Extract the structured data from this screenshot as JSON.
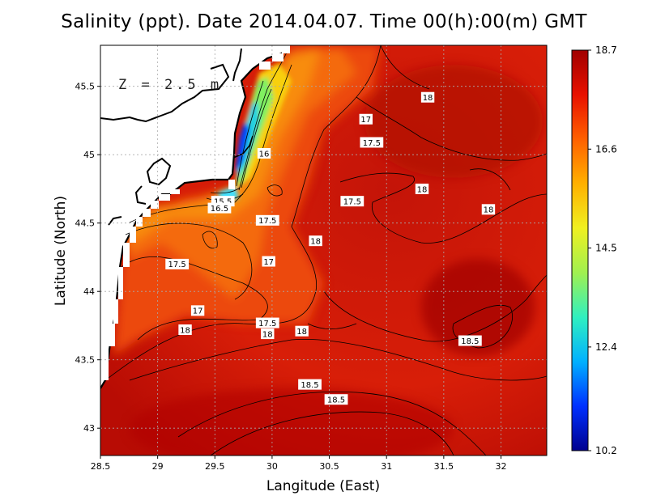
{
  "title": "Salinity (ppt). Date 2014.04.07. Time 00(h):00(m) GMT",
  "depth_label": "Z = 2.5 m",
  "chart_data": {
    "type": "heatmap",
    "variable": "Salinity (ppt)",
    "xlabel": "Langitude (East)",
    "ylabel": "Latitude (North)",
    "xlim": [
      28.5,
      32.4
    ],
    "ylim": [
      42.8,
      45.8
    ],
    "x_ticks": [
      28.5,
      29,
      29.5,
      30,
      30.5,
      31,
      31.5,
      32
    ],
    "x_tick_labels": [
      "28.5",
      "29",
      "29.5",
      "30",
      "30.5",
      "31",
      "31.5",
      "32"
    ],
    "y_ticks": [
      43,
      43.5,
      44,
      44.5,
      45,
      45.5
    ],
    "y_tick_labels": [
      "43",
      "43.5",
      "44",
      "44.5",
      "45",
      "45.5"
    ],
    "grid": true,
    "colorbar": {
      "min": 10.2,
      "max": 18.7,
      "tick_values": [
        18.7,
        16.6,
        14.5,
        12.4,
        10.2
      ],
      "tick_labels": [
        "18.7",
        "16.6",
        "14.5",
        "12.4",
        "10.2"
      ],
      "colors": [
        "#00008f",
        "#0030ff",
        "#00b0ff",
        "#30f0c0",
        "#a0f050",
        "#f0f020",
        "#ffb000",
        "#ff6000",
        "#e81000",
        "#a00000"
      ]
    },
    "contour_labels": [
      {
        "text": "17",
        "lon": 30.82,
        "lat": 45.26
      },
      {
        "text": "18",
        "lon": 31.36,
        "lat": 45.42
      },
      {
        "text": "17.5",
        "lon": 30.87,
        "lat": 45.09
      },
      {
        "text": "16",
        "lon": 29.93,
        "lat": 45.01
      },
      {
        "text": "15.5",
        "lon": 29.57,
        "lat": 44.66
      },
      {
        "text": "16.5",
        "lon": 29.54,
        "lat": 44.61
      },
      {
        "text": "17.5",
        "lon": 30.7,
        "lat": 44.66
      },
      {
        "text": "18",
        "lon": 31.31,
        "lat": 44.75
      },
      {
        "text": "18",
        "lon": 31.89,
        "lat": 44.6
      },
      {
        "text": "17.5",
        "lon": 29.96,
        "lat": 44.52
      },
      {
        "text": "18",
        "lon": 30.38,
        "lat": 44.37
      },
      {
        "text": "17.5",
        "lon": 29.17,
        "lat": 44.2
      },
      {
        "text": "17",
        "lon": 29.97,
        "lat": 44.22
      },
      {
        "text": "17",
        "lon": 29.35,
        "lat": 43.86
      },
      {
        "text": "17.5",
        "lon": 29.96,
        "lat": 43.77
      },
      {
        "text": "18",
        "lon": 29.96,
        "lat": 43.69
      },
      {
        "text": "18",
        "lon": 30.26,
        "lat": 43.71
      },
      {
        "text": "18",
        "lon": 29.24,
        "lat": 43.72
      },
      {
        "text": "18.5",
        "lon": 31.73,
        "lat": 43.64
      },
      {
        "text": "18.5",
        "lon": 30.33,
        "lat": 43.32
      },
      {
        "text": "18.5",
        "lon": 30.56,
        "lat": 43.21
      }
    ]
  }
}
